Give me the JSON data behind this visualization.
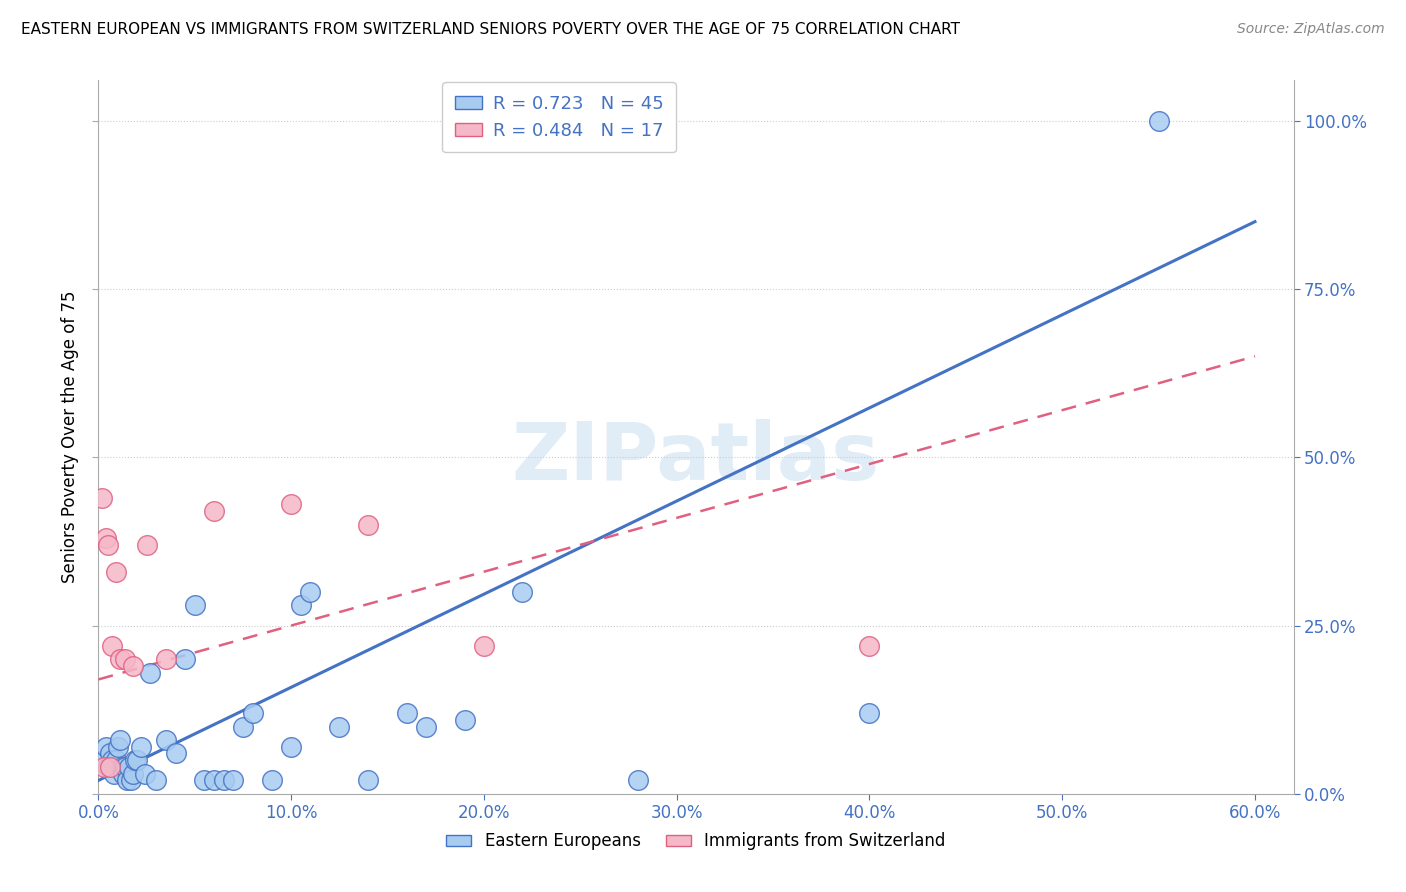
{
  "title": "EASTERN EUROPEAN VS IMMIGRANTS FROM SWITZERLAND SENIORS POVERTY OVER THE AGE OF 75 CORRELATION CHART",
  "source": "Source: ZipAtlas.com",
  "xlabel_blue": "Eastern Europeans",
  "xlabel_pink": "Immigrants from Switzerland",
  "ylabel": "Seniors Poverty Over the Age of 75",
  "R_blue": 0.723,
  "N_blue": 45,
  "R_pink": 0.484,
  "N_pink": 17,
  "blue_face": "#A8CCF0",
  "blue_edge": "#4472C4",
  "pink_face": "#F5B8C8",
  "pink_edge": "#E06080",
  "blue_line": "#4472C4",
  "pink_line": "#E06080",
  "watermark": "ZIPatlas",
  "blue_x": [
    0.3,
    0.4,
    0.5,
    0.6,
    0.7,
    0.8,
    0.9,
    1.0,
    1.1,
    1.2,
    1.3,
    1.4,
    1.5,
    1.6,
    1.7,
    1.8,
    1.9,
    2.0,
    2.2,
    2.4,
    2.7,
    3.0,
    3.5,
    4.0,
    4.5,
    5.0,
    5.5,
    6.0,
    6.5,
    7.0,
    7.5,
    8.0,
    9.0,
    10.0,
    10.5,
    11.0,
    12.5,
    14.0,
    16.0,
    17.0,
    19.0,
    22.0,
    28.0,
    40.0,
    55.0
  ],
  "blue_y": [
    5.0,
    7.0,
    4.0,
    6.0,
    5.0,
    3.0,
    5.0,
    7.0,
    8.0,
    4.0,
    3.0,
    4.0,
    2.0,
    4.0,
    2.0,
    3.0,
    5.0,
    5.0,
    7.0,
    3.0,
    18.0,
    2.0,
    8.0,
    6.0,
    20.0,
    28.0,
    2.0,
    2.0,
    2.0,
    2.0,
    10.0,
    12.0,
    2.0,
    7.0,
    28.0,
    30.0,
    10.0,
    2.0,
    12.0,
    10.0,
    11.0,
    30.0,
    2.0,
    12.0,
    100.0
  ],
  "pink_x": [
    0.2,
    0.4,
    0.5,
    0.7,
    0.9,
    1.1,
    1.4,
    1.8,
    2.5,
    3.5,
    6.0,
    10.0,
    14.0,
    20.0,
    40.0,
    0.3,
    0.6
  ],
  "pink_y": [
    44.0,
    38.0,
    37.0,
    22.0,
    33.0,
    20.0,
    20.0,
    19.0,
    37.0,
    20.0,
    42.0,
    43.0,
    40.0,
    22.0,
    22.0,
    4.0,
    4.0
  ],
  "blue_line_x0": 0.0,
  "blue_line_y0": 2.0,
  "blue_line_x1": 60.0,
  "blue_line_y1": 85.0,
  "pink_line_x0": 0.0,
  "pink_line_y0": 17.0,
  "pink_line_x1": 60.0,
  "pink_line_y1": 65.0,
  "xlim": [
    0.0,
    62.0
  ],
  "ylim": [
    0.0,
    106.0
  ],
  "xticks": [
    0.0,
    10.0,
    20.0,
    30.0,
    40.0,
    50.0,
    60.0
  ],
  "yticks": [
    0.0,
    25.0,
    50.0,
    75.0,
    100.0
  ],
  "xticklabels": [
    "0.0%",
    "10.0%",
    "20.0%",
    "30.0%",
    "40.0%",
    "50.0%",
    "60.0%"
  ],
  "yticklabels": [
    "0.0%",
    "25.0%",
    "50.0%",
    "75.0%",
    "100.0%"
  ],
  "tick_color": "#4472C4",
  "grid_color": "#CCCCCC",
  "spine_color": "#AAAAAA"
}
